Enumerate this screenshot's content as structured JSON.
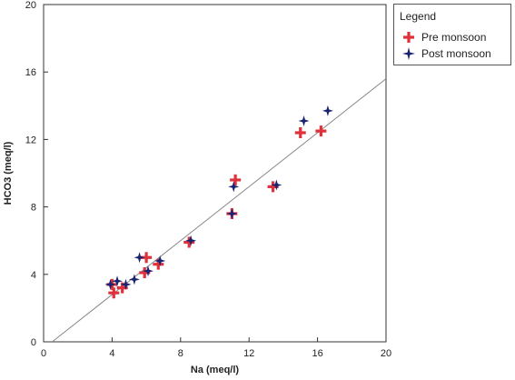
{
  "chart_data": {
    "type": "scatter",
    "xlabel": "Na (meq/l)",
    "ylabel": "HCO3 (meq/l)",
    "xlim": [
      0,
      20
    ],
    "ylim": [
      0,
      20
    ],
    "xticks": [
      "0",
      "4",
      "8",
      "12",
      "16",
      "20"
    ],
    "yticks": [
      "0",
      "4",
      "8",
      "12",
      "16",
      "20"
    ],
    "grid": false,
    "legend": {
      "title": "Legend",
      "placement": "outside-top-right"
    },
    "series": [
      {
        "name": "Pre monsoon",
        "marker": "plus",
        "color": "#e0303a",
        "points": [
          {
            "x": 4.0,
            "y": 3.4
          },
          {
            "x": 4.1,
            "y": 2.9
          },
          {
            "x": 4.6,
            "y": 3.2
          },
          {
            "x": 5.9,
            "y": 4.1
          },
          {
            "x": 6.0,
            "y": 5.0
          },
          {
            "x": 6.7,
            "y": 4.6
          },
          {
            "x": 8.5,
            "y": 5.9
          },
          {
            "x": 11.0,
            "y": 7.6
          },
          {
            "x": 11.2,
            "y": 9.6
          },
          {
            "x": 13.4,
            "y": 9.2
          },
          {
            "x": 15.0,
            "y": 12.4
          },
          {
            "x": 16.2,
            "y": 12.5
          }
        ]
      },
      {
        "name": "Post monsoon",
        "marker": "star",
        "color": "#1a2370",
        "points": [
          {
            "x": 3.9,
            "y": 3.4
          },
          {
            "x": 4.3,
            "y": 3.6
          },
          {
            "x": 4.8,
            "y": 3.4
          },
          {
            "x": 5.3,
            "y": 3.7
          },
          {
            "x": 5.6,
            "y": 5.0
          },
          {
            "x": 6.1,
            "y": 4.2
          },
          {
            "x": 6.8,
            "y": 4.8
          },
          {
            "x": 8.6,
            "y": 6.0
          },
          {
            "x": 11.0,
            "y": 7.6
          },
          {
            "x": 11.1,
            "y": 9.2
          },
          {
            "x": 13.6,
            "y": 9.3
          },
          {
            "x": 15.2,
            "y": 13.1
          },
          {
            "x": 16.6,
            "y": 13.7
          }
        ]
      }
    ],
    "trendline": {
      "x": [
        0.5,
        20
      ],
      "y": [
        0,
        15.6
      ],
      "color": "#888888"
    }
  }
}
